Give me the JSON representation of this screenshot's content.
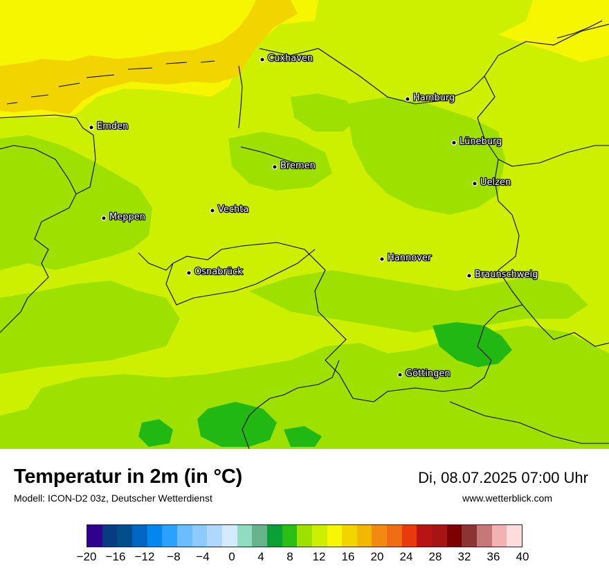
{
  "map": {
    "cities": [
      {
        "name": "Cuxhaven"
      },
      {
        "name": "Hamburg"
      },
      {
        "name": "Emden"
      },
      {
        "name": "Lüneburg"
      },
      {
        "name": "Bremen"
      },
      {
        "name": "Uelzen"
      },
      {
        "name": "Vechta"
      },
      {
        "name": "Meppen"
      },
      {
        "name": "Hannover"
      },
      {
        "name": "Osnabrück"
      },
      {
        "name": "Braunschweig"
      },
      {
        "name": "Göttingen"
      }
    ],
    "field_colors": {
      "t12": "#9ee000",
      "t14": "#ccf000",
      "t16": "#f6f600",
      "t18": "#f2d400",
      "t10": "#22b814"
    }
  },
  "header": {
    "title": "Temperatur in 2m (in °C)",
    "subtitle": "Modell: ICON-D2 03z, Deutscher Wetterdienst",
    "datetime": "Di, 08.07.2025 07:00 Uhr",
    "website": "www.wetterblick.com"
  },
  "legend": {
    "colors": [
      "#30008e",
      "#073c80",
      "#004d8c",
      "#0066c4",
      "#0087f0",
      "#2aa0ff",
      "#6cbcff",
      "#8ccaff",
      "#b0d8ff",
      "#d4ebff",
      "#90dcc0",
      "#68b28e",
      "#0aa038",
      "#28c014",
      "#9ee000",
      "#ccf000",
      "#f6f600",
      "#f2d400",
      "#f2b800",
      "#f28a12",
      "#f06c12",
      "#e83a0c",
      "#b81414",
      "#a81414",
      "#7c0000",
      "#8c3434",
      "#c47878",
      "#f2b2b2",
      "#ffdcdc"
    ],
    "ticks": [
      "−20",
      "−16",
      "−12",
      "−8",
      "−4",
      "0",
      "4",
      "8",
      "12",
      "16",
      "20",
      "24",
      "28",
      "32",
      "36",
      "40"
    ]
  }
}
